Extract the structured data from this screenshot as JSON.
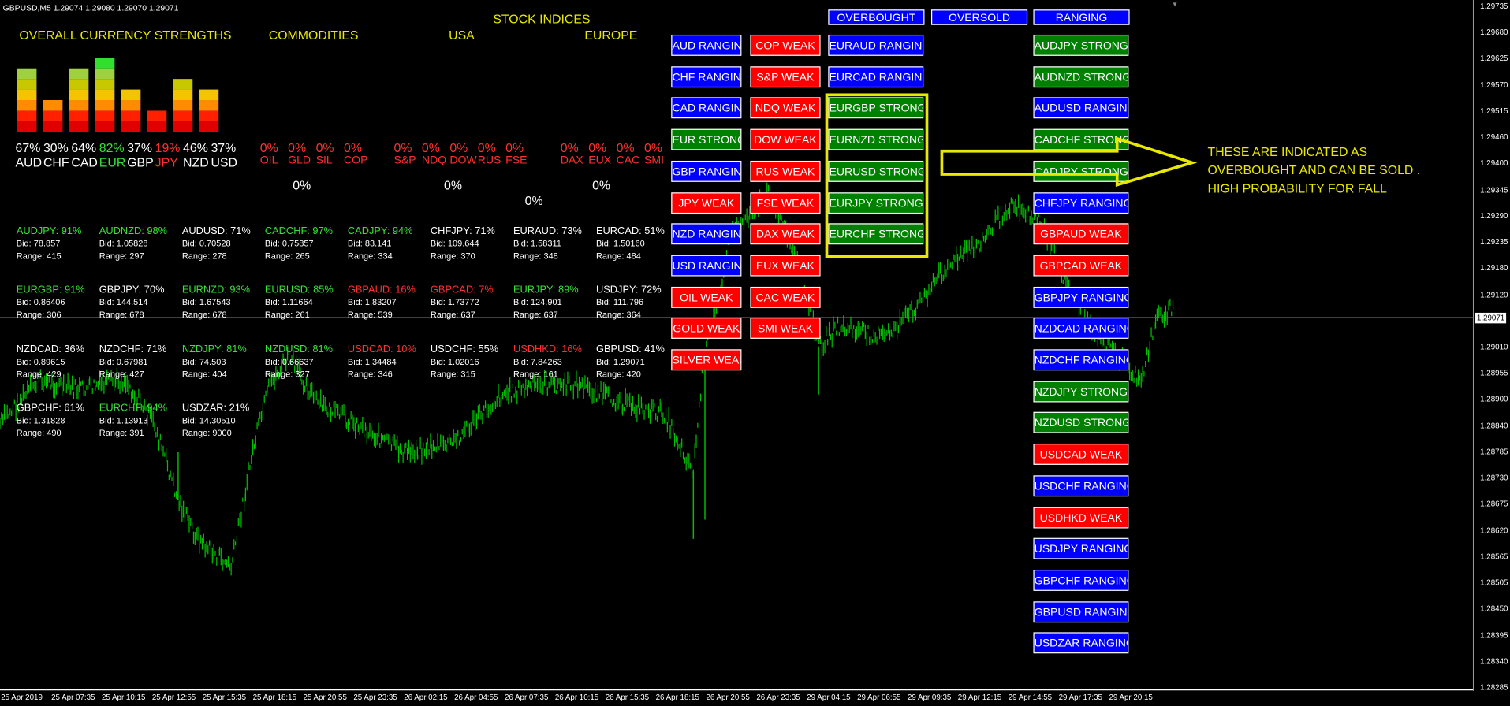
{
  "chart_header": {
    "symbol": "GBPUSD,M5",
    "ohlc": "1.29074 1.29080 1.29070 1.29071"
  },
  "headers": {
    "overall": "OVERALL CURRENCY STRENGTHS",
    "commodities": "COMMODITIES",
    "stock_indices": "STOCK INDICES",
    "usa": "USA",
    "europe": "EUROPE"
  },
  "strength_bars": [
    {
      "label": "AUD",
      "pct": "67%",
      "level": 6,
      "color": "white"
    },
    {
      "label": "CHF",
      "pct": "30%",
      "level": 3,
      "color": "white"
    },
    {
      "label": "CAD",
      "pct": "64%",
      "level": 6,
      "color": "white"
    },
    {
      "label": "EUR",
      "pct": "82%",
      "level": 7,
      "color": "green"
    },
    {
      "label": "GBP",
      "pct": "37%",
      "level": 4,
      "color": "white"
    },
    {
      "label": "JPY",
      "pct": "19%",
      "level": 2,
      "color": "red"
    },
    {
      "label": "NZD",
      "pct": "46%",
      "level": 5,
      "color": "white"
    },
    {
      "label": "USD",
      "pct": "37%",
      "level": 4,
      "color": "white"
    }
  ],
  "commodities": [
    {
      "pct": "0%",
      "label": "OIL"
    },
    {
      "pct": "0%",
      "label": "GLD"
    },
    {
      "pct": "0%",
      "label": "SIL"
    },
    {
      "pct": "0%",
      "label": "COP"
    }
  ],
  "usa": [
    {
      "pct": "0%",
      "label": "S&P"
    },
    {
      "pct": "0%",
      "label": "NDQ"
    },
    {
      "pct": "0%",
      "label": "DOW"
    },
    {
      "pct": "0%",
      "label": "RUS"
    },
    {
      "pct": "0%",
      "label": "FSE"
    }
  ],
  "europe": [
    {
      "pct": "0%",
      "label": "DAX"
    },
    {
      "pct": "0%",
      "label": "EUX"
    },
    {
      "pct": "0%",
      "label": "CAC"
    },
    {
      "pct": "0%",
      "label": "SMI"
    }
  ],
  "totals": {
    "commodities": "0%",
    "usa": "0%",
    "stock_indices": "0%",
    "europe": "0%"
  },
  "pairs": [
    [
      {
        "name": "AUDJPY: 91%",
        "bid": "Bid: 78.857",
        "range": "Range: 415",
        "color": "green"
      },
      {
        "name": "AUDNZD: 98%",
        "bid": "Bid: 1.05828",
        "range": "Range: 297",
        "color": "green"
      },
      {
        "name": "AUDUSD: 71%",
        "bid": "Bid: 0.70528",
        "range": "Range: 278",
        "color": "white"
      },
      {
        "name": "CADCHF: 97%",
        "bid": "Bid: 0.75857",
        "range": "Range: 265",
        "color": "green"
      },
      {
        "name": "CADJPY: 94%",
        "bid": "Bid: 83.141",
        "range": "Range: 334",
        "color": "green"
      },
      {
        "name": "CHFJPY: 71%",
        "bid": "Bid: 109.644",
        "range": "Range: 370",
        "color": "white"
      },
      {
        "name": "EURAUD: 73%",
        "bid": "Bid: 1.58311",
        "range": "Range: 348",
        "color": "white"
      },
      {
        "name": "EURCAD: 51%",
        "bid": "Bid: 1.50160",
        "range": "Range: 484",
        "color": "white"
      }
    ],
    [
      {
        "name": "EURGBP: 91%",
        "bid": "Bid: 0.86406",
        "range": "Range: 306",
        "color": "green"
      },
      {
        "name": "GBPJPY: 70%",
        "bid": "Bid: 144.514",
        "range": "Range: 678",
        "color": "white"
      },
      {
        "name": "EURNZD: 93%",
        "bid": "Bid: 1.67543",
        "range": "Range: 678",
        "color": "green"
      },
      {
        "name": "EURUSD: 85%",
        "bid": "Bid: 1.11664",
        "range": "Range: 261",
        "color": "green"
      },
      {
        "name": "GBPAUD: 16%",
        "bid": "Bid: 1.83207",
        "range": "Range: 539",
        "color": "red"
      },
      {
        "name": "GBPCAD: 7%",
        "bid": "Bid: 1.73772",
        "range": "Range: 637",
        "color": "red"
      },
      {
        "name": "EURJPY: 89%",
        "bid": "Bid: 124.901",
        "range": "Range: 637",
        "color": "green"
      },
      {
        "name": "USDJPY: 72%",
        "bid": "Bid: 111.796",
        "range": "Range: 364",
        "color": "white"
      }
    ],
    [
      {
        "name": "NZDCAD: 36%",
        "bid": "Bid: 0.89615",
        "range": "Range: 429",
        "color": "white"
      },
      {
        "name": "NZDCHF: 71%",
        "bid": "Bid: 0.67981",
        "range": "Range: 427",
        "color": "white"
      },
      {
        "name": "NZDJPY: 81%",
        "bid": "Bid: 74.503",
        "range": "Range: 404",
        "color": "green"
      },
      {
        "name": "NZDUSD: 81%",
        "bid": "Bid: 0.66637",
        "range": "Range: 327",
        "color": "green"
      },
      {
        "name": "USDCAD: 10%",
        "bid": "Bid: 1.34484",
        "range": "Range: 346",
        "color": "red"
      },
      {
        "name": "USDCHF: 55%",
        "bid": "Bid: 1.02016",
        "range": "Range: 315",
        "color": "white"
      },
      {
        "name": "USDHKD: 16%",
        "bid": "Bid: 7.84263",
        "range": "Range: 161",
        "color": "red"
      },
      {
        "name": "GBPUSD: 41%",
        "bid": "Bid: 1.29071",
        "range": "Range: 420",
        "color": "white"
      }
    ],
    [
      {
        "name": "GBPCHF: 61%",
        "bid": "Bid: 1.31828",
        "range": "Range: 490",
        "color": "white"
      },
      {
        "name": "EURCHF: 94%",
        "bid": "Bid: 1.13913",
        "range": "Range: 391",
        "color": "green"
      },
      {
        "name": "USDZAR: 21%",
        "bid": "Bid: 14.30510",
        "range": "Range: 9000",
        "color": "white"
      }
    ]
  ],
  "col1": [
    {
      "label": "AUD RANGING",
      "color": "blue"
    },
    {
      "label": "CHF RANGING",
      "color": "blue"
    },
    {
      "label": "CAD RANGING",
      "color": "blue"
    },
    {
      "label": "EUR STRONG",
      "color": "green"
    },
    {
      "label": "GBP RANGING",
      "color": "blue"
    },
    {
      "label": "JPY WEAK",
      "color": "red"
    },
    {
      "label": "NZD RANGING",
      "color": "blue"
    },
    {
      "label": "USD RANGING",
      "color": "blue"
    },
    {
      "label": "OIL WEAK",
      "color": "red"
    },
    {
      "label": "GOLD WEAK",
      "color": "red"
    },
    {
      "label": "SILVER WEAK",
      "color": "red"
    }
  ],
  "col2": [
    {
      "label": "COP WEAK",
      "color": "red"
    },
    {
      "label": "S&P WEAK",
      "color": "red"
    },
    {
      "label": "NDQ WEAK",
      "color": "red"
    },
    {
      "label": "DOW WEAK",
      "color": "red"
    },
    {
      "label": "RUS WEAK",
      "color": "red"
    },
    {
      "label": "FSE WEAK",
      "color": "red"
    },
    {
      "label": "DAX WEAK",
      "color": "red"
    },
    {
      "label": "EUX WEAK",
      "color": "red"
    },
    {
      "label": "CAC WEAK",
      "color": "red"
    },
    {
      "label": "SMI WEAK",
      "color": "red"
    }
  ],
  "top_headers": {
    "overbought": "OVERBOUGHT",
    "oversold": "OVERSOLD",
    "ranging": "RANGING"
  },
  "col3": [
    {
      "label": "EURAUD RANGING",
      "color": "blue"
    },
    {
      "label": "EURCAD RANGING",
      "color": "blue"
    },
    {
      "label": "EURGBP STRONG",
      "color": "green"
    },
    {
      "label": "EURNZD STRONG",
      "color": "green"
    },
    {
      "label": "EURUSD STRONG",
      "color": "green"
    },
    {
      "label": "EURJPY STRONG",
      "color": "green"
    },
    {
      "label": "EURCHF STRONG",
      "color": "green"
    }
  ],
  "col4": [
    {
      "label": "AUDJPY STRONG",
      "color": "green"
    },
    {
      "label": "AUDNZD STRONG",
      "color": "green"
    },
    {
      "label": "AUDUSD RANGING",
      "color": "blue"
    },
    {
      "label": "CADCHF STRONG",
      "color": "green"
    },
    {
      "label": "CADJPY STRONG",
      "color": "green"
    },
    {
      "label": "CHFJPY RANGING",
      "color": "blue"
    },
    {
      "label": "GBPAUD WEAK",
      "color": "red"
    },
    {
      "label": "GBPCAD WEAK",
      "color": "red"
    },
    {
      "label": "GBPJPY RANGING",
      "color": "blue"
    },
    {
      "label": "NZDCAD RANGING",
      "color": "blue"
    },
    {
      "label": "NZDCHF RANGING",
      "color": "blue"
    },
    {
      "label": "NZDJPY STRONG",
      "color": "green"
    },
    {
      "label": "NZDUSD STRONG",
      "color": "green"
    },
    {
      "label": "USDCAD WEAK",
      "color": "red"
    },
    {
      "label": "USDCHF RANGING",
      "color": "blue"
    },
    {
      "label": "USDHKD WEAK",
      "color": "red"
    },
    {
      "label": "USDJPY RANGING",
      "color": "blue"
    },
    {
      "label": "GBPCHF RANGING",
      "color": "blue"
    },
    {
      "label": "GBPUSD RANGING",
      "color": "blue"
    },
    {
      "label": "USDZAR RANGING",
      "color": "blue"
    }
  ],
  "annotation": "THESE ARE INDICATED AS OVERBOUGHT AND CAN BE SOLD . HIGH PROBABILITY FOR FALL",
  "price_axis": [
    "1.29735",
    "1.29680",
    "1.29625",
    "1.29570",
    "1.29515",
    "1.29460",
    "1.29400",
    "1.29345",
    "1.29290",
    "1.29235",
    "1.29180",
    "1.29120",
    "1.29071",
    "1.29010",
    "1.28955",
    "1.28900",
    "1.28840",
    "1.28785",
    "1.28730",
    "1.28675",
    "1.28620",
    "1.28565",
    "1.28505",
    "1.28450",
    "1.28395",
    "1.28340",
    "1.28285"
  ],
  "current_price": "1.29071",
  "time_axis": [
    "25 Apr 2019",
    "25 Apr 07:35",
    "25 Apr 10:15",
    "25 Apr 12:55",
    "25 Apr 15:35",
    "25 Apr 18:15",
    "25 Apr 20:55",
    "25 Apr 23:35",
    "26 Apr 02:15",
    "26 Apr 04:55",
    "26 Apr 07:35",
    "26 Apr 10:15",
    "26 Apr 15:35",
    "26 Apr 18:15",
    "26 Apr 20:55",
    "26 Apr 23:35",
    "29 Apr 04:15",
    "29 Apr 06:55",
    "29 Apr 09:35",
    "29 Apr 12:15",
    "29 Apr 14:55",
    "29 Apr 17:35",
    "29 Apr 20:15"
  ],
  "colors": {
    "green": "#38e038",
    "red": "#ff3030",
    "white": "#ffffff",
    "yellow": "#e8e800",
    "candle": "#00c000"
  }
}
